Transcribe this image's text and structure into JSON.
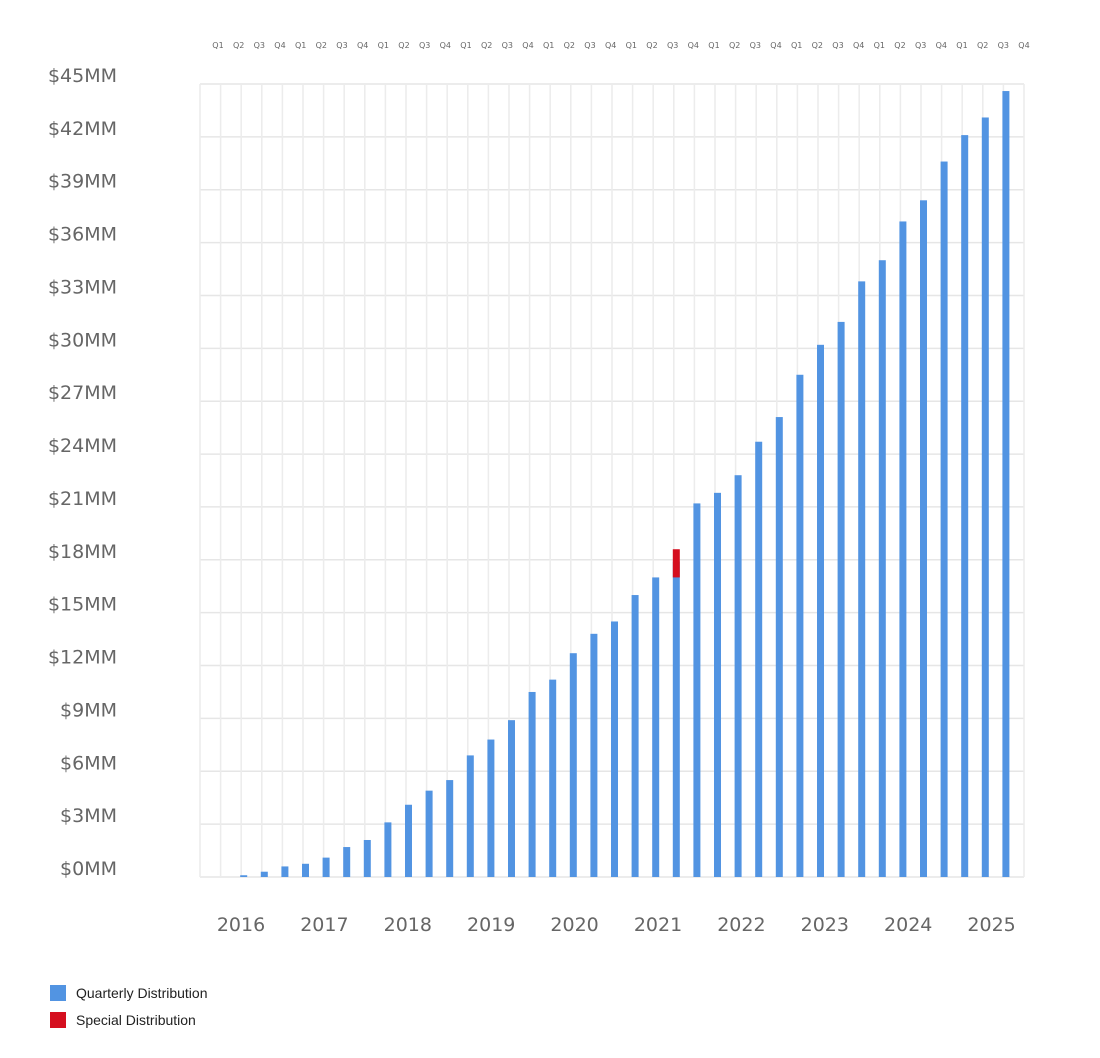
{
  "chart_data": {
    "type": "bar",
    "title": "",
    "xlabel": "",
    "ylabel": "",
    "ylim": [
      0,
      45
    ],
    "y_tick_step": 3,
    "y_tick_labels": [
      "$0MM",
      "$3MM",
      "$6MM",
      "$9MM",
      "$12MM",
      "$15MM",
      "$18MM",
      "$21MM",
      "$24MM",
      "$27MM",
      "$30MM",
      "$33MM",
      "$36MM",
      "$39MM",
      "$42MM",
      "$45MM"
    ],
    "years": [
      "2016",
      "2017",
      "2018",
      "2019",
      "2020",
      "2021",
      "2022",
      "2023",
      "2024",
      "2025"
    ],
    "quarters": [
      "Q1",
      "Q2",
      "Q3",
      "Q4"
    ],
    "grid": true,
    "legend_position": "bottom-left",
    "series": [
      {
        "name": "Quarterly Distribution",
        "color": "#5294E2",
        "values": [
          0,
          0.1,
          0.3,
          0.6,
          0.75,
          1.1,
          1.7,
          2.1,
          3.1,
          4.1,
          4.9,
          5.5,
          6.9,
          7.8,
          8.9,
          10.5,
          11.2,
          12.7,
          13.8,
          14.5,
          16.0,
          17.0,
          17.9,
          21.2,
          21.8,
          22.8,
          24.7,
          26.1,
          28.5,
          30.2,
          31.5,
          33.8,
          35.0,
          37.2,
          38.4,
          40.6,
          42.1,
          43.1,
          44.6,
          null
        ]
      },
      {
        "name": "Special Distribution",
        "color": "#D50F1F",
        "points": [
          {
            "index": 22,
            "value": 1.6,
            "stacked_from": 17.0
          }
        ]
      }
    ]
  }
}
